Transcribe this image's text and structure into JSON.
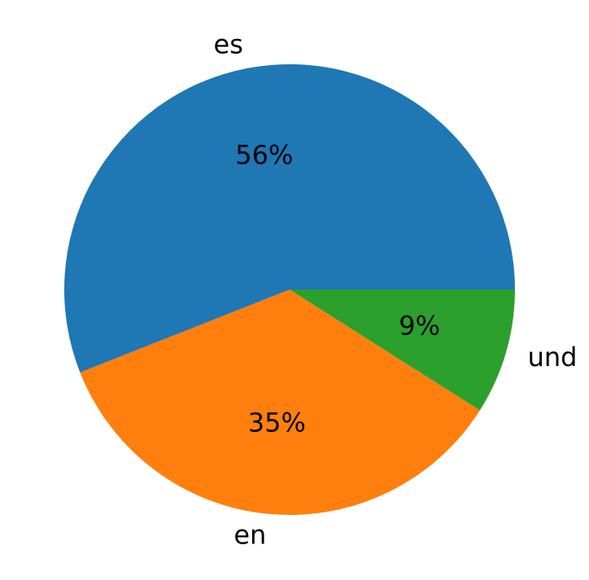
{
  "chart_data": {
    "type": "pie",
    "categories": [
      "es",
      "en",
      "und"
    ],
    "values": [
      56,
      35,
      9
    ],
    "value_labels": [
      "56%",
      "35%",
      "9%"
    ],
    "colors": [
      "#1f77b4",
      "#ff7f0e",
      "#2ca02c"
    ]
  }
}
